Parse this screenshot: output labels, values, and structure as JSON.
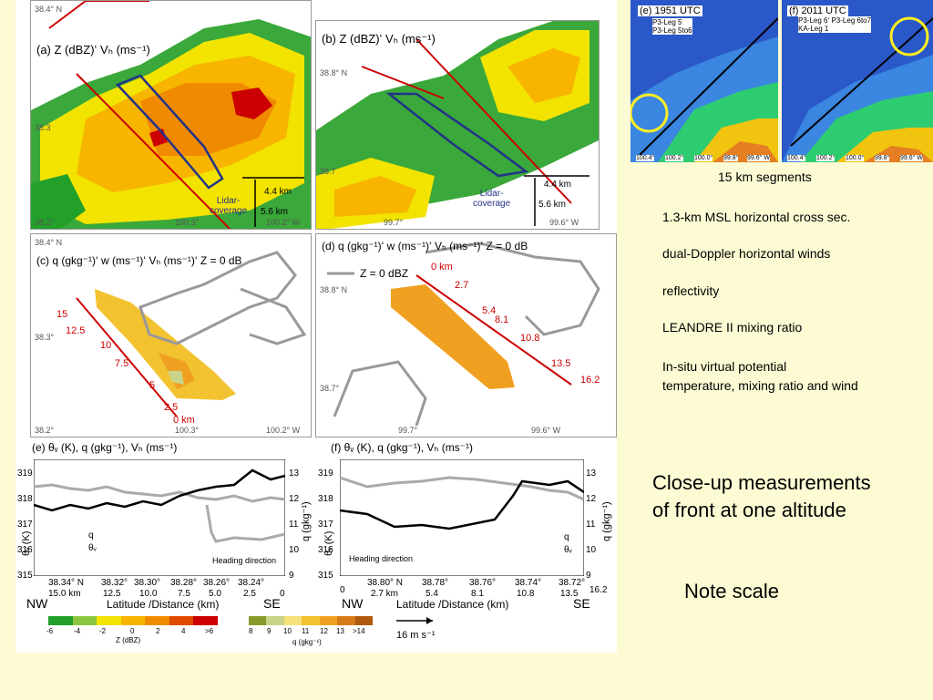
{
  "panels": {
    "a": {
      "title": "(a) Z (dBZ)ʻ Vₕ (ms⁻¹)",
      "lat_top": "38.4° N",
      "lat_mid": "38.3",
      "lat_bot": "38.2°",
      "lon_mid": "100.3°",
      "lon_right": "100.2° W",
      "scale_x": "4.4 km",
      "scale_y": "5.6 km",
      "lidar": "Lidar-\ncoverage"
    },
    "b": {
      "title": "(b) Z (dBZ)ʻ Vₕ (ms⁻¹)",
      "lat_top": "38.8° N",
      "lat_bot": "38.7",
      "lon_mid": "99.7°",
      "lon_right": "99.6° W",
      "scale_x": "4.4 km",
      "scale_y": "5.6 km",
      "lidar": "Lidar-\ncoverage"
    },
    "c": {
      "title": "(c) q (gkg⁻¹)ʻ w (ms⁻¹)ʻ Vₕ (ms⁻¹)ʻ Z = 0 dB",
      "lat_top": "38.4° N",
      "lat_mid": "38.3°",
      "lat_bot": "38.2°",
      "lon_mid": "100.3°",
      "lon_right": "100.2° W",
      "km_labels": [
        "15",
        "12.5",
        "10",
        "7.5",
        "5",
        "2.5",
        "0 km"
      ]
    },
    "d": {
      "title": "(d) q (gkg⁻¹)ʻ w (ms⁻¹)ʻ Vₕ (ms⁻¹)ʻ Z = 0 dB",
      "legend": "Z = 0 dBZ",
      "lat_top": "38.8° N",
      "lat_bot": "38.7°",
      "lon_mid": "99.7°",
      "lon_right": "99.6° W",
      "km_labels": [
        "0 km",
        "2.7",
        "5.4",
        "8.1",
        "10.8",
        "13.5",
        "16.2"
      ]
    },
    "e": {
      "title": "(e) θᵥ (K), q (gkg⁻¹), Vₕ (ms⁻¹)",
      "y_left": [
        "319",
        "318",
        "317",
        "316",
        "315"
      ],
      "y_right": [
        "13",
        "12",
        "11",
        "10",
        "9"
      ],
      "legend_q": "q",
      "legend_theta": "θᵥ",
      "heading": "Heading direction",
      "x_lat": [
        "38.34° N",
        "38.32°",
        "38.30°",
        "38.28°",
        "38.26°",
        "38.24°"
      ],
      "x_km": [
        "15.0 km",
        "12.5",
        "10.0",
        "7.5",
        "5.0",
        "2.5",
        "0"
      ],
      "nw": "NW",
      "se": "SE",
      "xlabel": "Latitude /Distance (km)",
      "ylabel_left": "θᵥ (K)",
      "ylabel_right": "q (gkg⁻¹)"
    },
    "f": {
      "title": "(f) θᵥ (K), q (gkg⁻¹), Vₕ (ms⁻¹)",
      "y_left": [
        "319",
        "318",
        "317",
        "316",
        "315"
      ],
      "y_right": [
        "13",
        "12",
        "11",
        "10",
        "9"
      ],
      "legend_q": "q",
      "legend_theta": "θᵥ",
      "heading": "Heading direction",
      "x_lat": [
        "38.80° N",
        "38.78°",
        "38.76°",
        "38.74°",
        "38.72°"
      ],
      "x_km": [
        "0",
        "2.7 km",
        "5.4",
        "8.1",
        "10.8",
        "13.5",
        "16.2"
      ],
      "nw": "NW",
      "se": "SE",
      "xlabel": "Latitude /Distance (km)",
      "ylabel_left": "θᵥ (K)",
      "ylabel_right": "q (gkg⁻¹)"
    }
  },
  "colorbars": {
    "z": {
      "ticks": [
        "-6",
        "-4",
        "-2",
        "0",
        "2",
        "4",
        ">6"
      ],
      "label": "Z (dBZ)",
      "colors": [
        "#22a02a",
        "#8cc63f",
        "#f2e300",
        "#f7b500",
        "#f08a00",
        "#e04a00",
        "#cc0000"
      ]
    },
    "q": {
      "ticks": [
        "8",
        "9",
        "10",
        "11",
        "12",
        "13",
        ">14"
      ],
      "label": "q (gkg⁻¹)",
      "colors": [
        "#8a9a2a",
        "#c8d48a",
        "#f5e27a",
        "#f2c230",
        "#f0a020",
        "#d77a18",
        "#b05a10"
      ]
    },
    "wind": "16 m s⁻¹"
  },
  "radar": {
    "e": {
      "time": "(e) 1951 UTC",
      "legs": "P3-Leg 5\nP3-Leg 5to6",
      "bottom": [
        "100.4°",
        "100.2°",
        "100.0°",
        "99.8°",
        "99.6° W"
      ]
    },
    "f": {
      "time": "(f) 2011 UTC",
      "legs": "P3-Leg 6ʻ P3-Leg 6to7\nKA-Leg 1",
      "bottom": [
        "100.4°",
        "100.2°",
        "100.0°",
        "99.8°",
        "99.6° W"
      ]
    }
  },
  "notes": {
    "segments": "15 km segments",
    "items": [
      "1.3-km MSL horizontal cross sec.",
      "dual-Doppler horizontal winds",
      "reflectivity",
      "LEANDRE II mixing ratio",
      "In-situ virtual potential\ntemperature, mixing ratio and wind"
    ],
    "headline": "Close-up measurements\nof front at one altitude",
    "scale": "Note scale"
  }
}
